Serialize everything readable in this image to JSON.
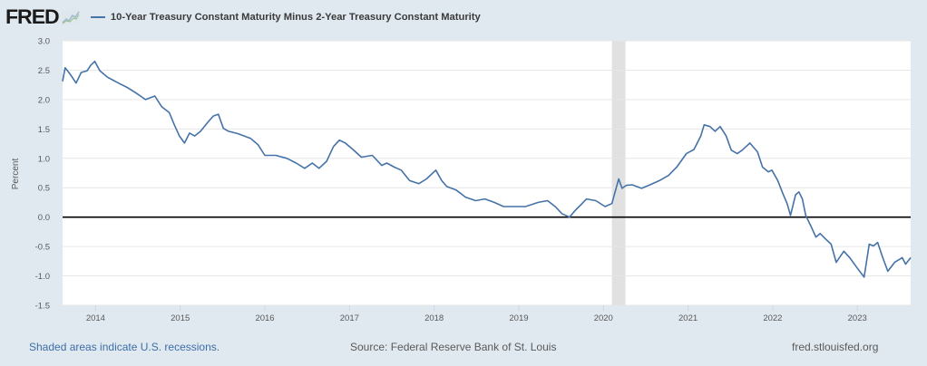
{
  "header": {
    "logo": "FRED",
    "series_label": "10-Year Treasury Constant Maturity Minus 2-Year Treasury Constant Maturity"
  },
  "footer": {
    "recession_note": "Shaded areas indicate U.S. recessions.",
    "source": "Source: Federal Reserve Bank of St. Louis",
    "site": "fred.stlouisfed.org"
  },
  "colors": {
    "background": "#e1e9f0",
    "plot_background": "#ffffff",
    "series": "#4572a7",
    "recession": "#e1e1e1",
    "zero_line": "#000000",
    "grid": "#e6e6e6"
  },
  "chart_data": {
    "type": "line",
    "title": "10-Year Treasury Constant Maturity Minus 2-Year Treasury Constant Maturity",
    "xlabel": "",
    "ylabel": "Percent",
    "xlim": [
      2013.61,
      2023.63
    ],
    "ylim": [
      -1.5,
      3.0
    ],
    "yticks": [
      "3.0",
      "2.5",
      "2.0",
      "1.5",
      "1.0",
      "0.5",
      "0.0",
      "-0.5",
      "-1.0",
      "-1.5"
    ],
    "ytick_values": [
      3.0,
      2.5,
      2.0,
      1.5,
      1.0,
      0.5,
      0.0,
      -0.5,
      -1.0,
      -1.5
    ],
    "xticks": [
      "2014",
      "2015",
      "2016",
      "2017",
      "2018",
      "2019",
      "2020",
      "2021",
      "2022",
      "2023"
    ],
    "xtick_values": [
      2014,
      2015,
      2016,
      2017,
      2018,
      2019,
      2020,
      2021,
      2022,
      2023
    ],
    "grid": true,
    "legend": "top-left",
    "recessions": [
      [
        2020.1,
        2020.26
      ]
    ],
    "reference_line": 0.0,
    "series": [
      {
        "name": "10-Year Treasury Constant Maturity Minus 2-Year Treasury Constant Maturity",
        "x": [
          2013.61,
          2013.64,
          2013.7,
          2013.77,
          2013.83,
          2013.9,
          2013.94,
          2013.99,
          2014.05,
          2014.14,
          2014.27,
          2014.38,
          2014.48,
          2014.59,
          2014.7,
          2014.78,
          2014.87,
          2014.93,
          2014.99,
          2015.05,
          2015.11,
          2015.17,
          2015.24,
          2015.33,
          2015.39,
          2015.45,
          2015.51,
          2015.57,
          2015.68,
          2015.83,
          2015.92,
          2016.0,
          2016.13,
          2016.26,
          2016.37,
          2016.47,
          2016.56,
          2016.64,
          2016.73,
          2016.81,
          2016.88,
          2016.95,
          2017.04,
          2017.14,
          2017.27,
          2017.38,
          2017.44,
          2017.53,
          2017.61,
          2017.71,
          2017.82,
          2017.91,
          2018.02,
          2018.09,
          2018.15,
          2018.26,
          2018.37,
          2018.49,
          2018.6,
          2018.71,
          2018.82,
          2018.93,
          2019.08,
          2019.23,
          2019.34,
          2019.43,
          2019.51,
          2019.6,
          2019.67,
          2019.74,
          2019.8,
          2019.91,
          2020.02,
          2020.1,
          2020.18,
          2020.22,
          2020.27,
          2020.34,
          2020.45,
          2020.55,
          2020.66,
          2020.77,
          2020.87,
          2020.98,
          2021.07,
          2021.15,
          2021.19,
          2021.26,
          2021.32,
          2021.38,
          2021.45,
          2021.51,
          2021.58,
          2021.64,
          2021.73,
          2021.82,
          2021.88,
          2021.95,
          2021.99,
          2022.06,
          2022.12,
          2022.17,
          2022.21,
          2022.27,
          2022.31,
          2022.35,
          2022.39,
          2022.45,
          2022.51,
          2022.56,
          2022.63,
          2022.69,
          2022.75,
          2022.84,
          2022.91,
          2022.99,
          2023.08,
          2023.14,
          2023.19,
          2023.24,
          2023.3,
          2023.36,
          2023.44,
          2023.53,
          2023.57,
          2023.63
        ],
        "values": [
          2.31,
          2.54,
          2.43,
          2.28,
          2.46,
          2.49,
          2.58,
          2.65,
          2.49,
          2.38,
          2.28,
          2.2,
          2.11,
          2.0,
          2.06,
          1.88,
          1.78,
          1.57,
          1.38,
          1.26,
          1.43,
          1.38,
          1.46,
          1.62,
          1.72,
          1.75,
          1.51,
          1.46,
          1.42,
          1.34,
          1.23,
          1.05,
          1.05,
          1.0,
          0.92,
          0.83,
          0.92,
          0.83,
          0.95,
          1.2,
          1.31,
          1.26,
          1.15,
          1.02,
          1.05,
          0.88,
          0.92,
          0.85,
          0.8,
          0.62,
          0.57,
          0.65,
          0.8,
          0.62,
          0.52,
          0.46,
          0.34,
          0.28,
          0.31,
          0.25,
          0.18,
          0.18,
          0.18,
          0.25,
          0.28,
          0.18,
          0.06,
          0.0,
          0.12,
          0.22,
          0.31,
          0.28,
          0.18,
          0.23,
          0.65,
          0.49,
          0.54,
          0.55,
          0.49,
          0.55,
          0.62,
          0.71,
          0.86,
          1.08,
          1.15,
          1.38,
          1.57,
          1.54,
          1.46,
          1.54,
          1.38,
          1.14,
          1.08,
          1.14,
          1.26,
          1.11,
          0.85,
          0.77,
          0.8,
          0.62,
          0.4,
          0.23,
          0.03,
          0.38,
          0.43,
          0.31,
          0.03,
          -0.15,
          -0.34,
          -0.28,
          -0.38,
          -0.46,
          -0.77,
          -0.58,
          -0.69,
          -0.85,
          -1.02,
          -0.46,
          -0.49,
          -0.43,
          -0.69,
          -0.92,
          -0.77,
          -0.69,
          -0.8,
          -0.69
        ]
      }
    ]
  }
}
